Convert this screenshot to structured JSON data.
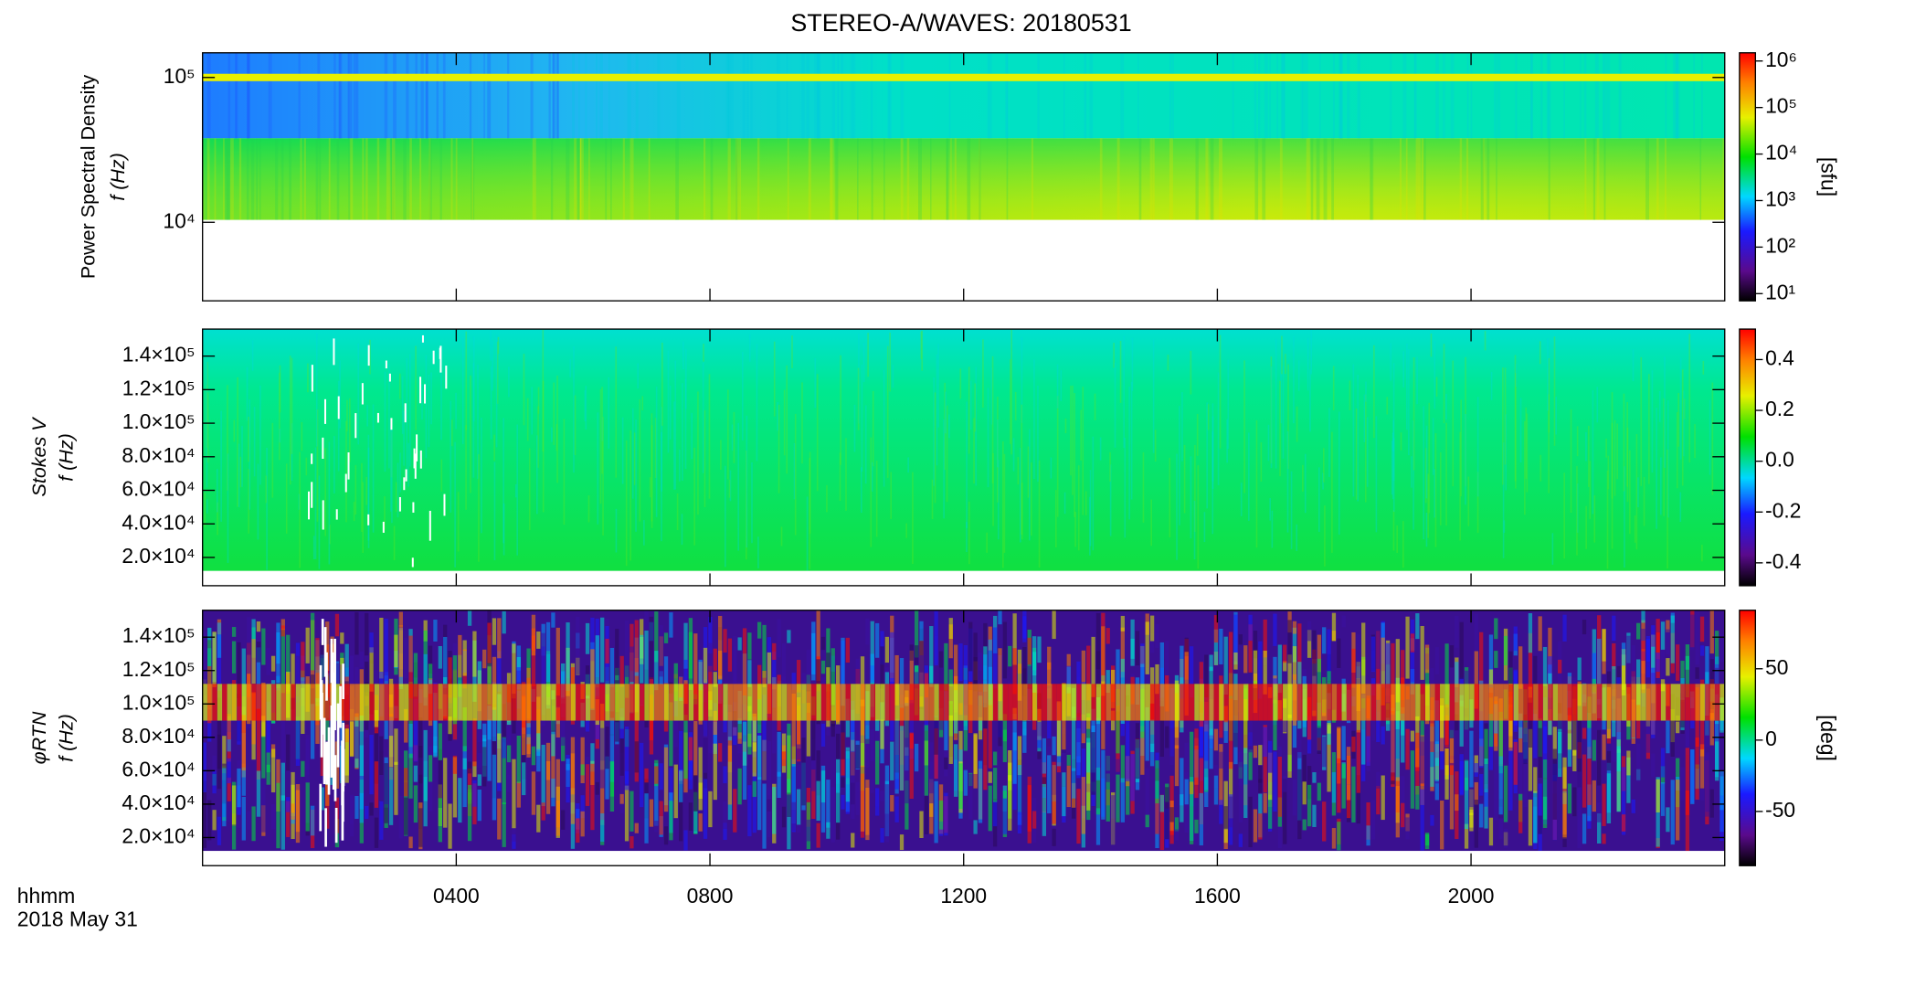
{
  "chart_data": [
    {
      "type": "spectrogram",
      "title": "STEREO-A/WAVES: 20180531",
      "ylabel": [
        "Power Spectral Density",
        "f (Hz)"
      ],
      "ylog": true,
      "ylim": [
        2870,
        148000
      ],
      "yticks": [
        {
          "value": 10000,
          "label": "10⁴"
        },
        {
          "value": 100000,
          "label": "10⁵"
        }
      ],
      "colorbar": {
        "label": "[sfu]",
        "log": true,
        "lim": [
          7,
          1500000
        ],
        "ticks": [
          {
            "value": 10,
            "label": "10¹"
          },
          {
            "value": 100,
            "label": "10²"
          },
          {
            "value": 1000,
            "label": "10³"
          },
          {
            "value": 10000,
            "label": "10⁴"
          },
          {
            "value": 100000,
            "label": "10⁵"
          },
          {
            "value": 1000000,
            "label": "10⁶"
          }
        ]
      }
    },
    {
      "type": "spectrogram",
      "ylabel": [
        "Stokes V",
        "f (Hz)"
      ],
      "ylog": false,
      "ylim": [
        3150,
        156100
      ],
      "yticks": [
        {
          "value": 20000,
          "label": "2.0×10⁴"
        },
        {
          "value": 40000,
          "label": "4.0×10⁴"
        },
        {
          "value": 60000,
          "label": "6.0×10⁴"
        },
        {
          "value": 80000,
          "label": "8.0×10⁴"
        },
        {
          "value": 100000,
          "label": "1.0×10⁵"
        },
        {
          "value": 120000,
          "label": "1.2×10⁵"
        },
        {
          "value": 140000,
          "label": "1.4×10⁵"
        }
      ],
      "colorbar": {
        "log": false,
        "lim": [
          -0.49,
          0.52
        ],
        "ticks": [
          -0.4,
          -0.2,
          {
            "value": 0,
            "label": "0.0"
          },
          0.2,
          0.4
        ]
      }
    },
    {
      "type": "spectrogram",
      "ylabel": [
        "φRTN",
        "f (Hz)"
      ],
      "ylog": false,
      "ylim": [
        3150,
        156100
      ],
      "yticks": [
        {
          "value": 20000,
          "label": "2.0×10⁴"
        },
        {
          "value": 40000,
          "label": "4.0×10⁴"
        },
        {
          "value": 60000,
          "label": "6.0×10⁴"
        },
        {
          "value": 80000,
          "label": "8.0×10⁴"
        },
        {
          "value": 100000,
          "label": "1.0×10⁵"
        },
        {
          "value": 120000,
          "label": "1.2×10⁵"
        },
        {
          "value": 140000,
          "label": "1.4×10⁵"
        }
      ],
      "colorbar": {
        "label": "[deg]",
        "log": false,
        "lim": [
          -88,
          91
        ],
        "ticks": [
          -50,
          0,
          50
        ]
      },
      "xlabel": "hhmm",
      "date": "2018 May 31",
      "xlim": [
        0,
        24
      ],
      "xticks": [
        {
          "value": 4,
          "label": "0400"
        },
        {
          "value": 8,
          "label": "0800"
        },
        {
          "value": 12,
          "label": "1200"
        },
        {
          "value": 16,
          "label": "1600"
        },
        {
          "value": 20,
          "label": "2000"
        }
      ]
    }
  ]
}
